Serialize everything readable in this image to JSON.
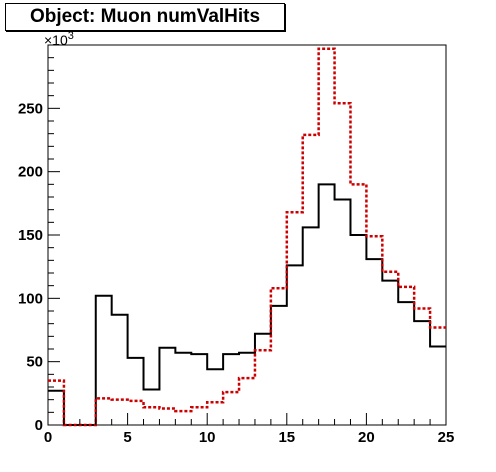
{
  "chart_data": {
    "type": "line",
    "title": "Object: Muon numValHits",
    "xlim": [
      0,
      25
    ],
    "ylim": [
      0,
      300
    ],
    "y_exponent": "×10",
    "y_exponent_power": "3",
    "x_ticks": [
      0,
      5,
      10,
      15,
      20,
      25
    ],
    "y_ticks": [
      0,
      50,
      100,
      150,
      200,
      250
    ],
    "bin_edges": [
      0,
      1,
      2,
      3,
      4,
      5,
      6,
      7,
      8,
      9,
      10,
      11,
      12,
      13,
      14,
      15,
      16,
      17,
      18,
      19,
      20,
      21,
      22,
      23,
      24,
      25
    ],
    "series": [
      {
        "color": "#000000",
        "style": "solid",
        "values": [
          27,
          0,
          0,
          102,
          87,
          53,
          28,
          61,
          57,
          56,
          44,
          56,
          57,
          72,
          94,
          126,
          156,
          190,
          178,
          150,
          131,
          114,
          97,
          82,
          62
        ]
      },
      {
        "color": "#cc0000",
        "style": "dotted",
        "values": [
          35,
          0,
          0,
          21,
          20,
          19,
          14,
          13,
          11,
          14,
          18,
          26,
          37,
          59,
          108,
          168,
          229,
          297,
          254,
          190,
          149,
          121,
          109,
          92,
          77
        ]
      }
    ]
  }
}
